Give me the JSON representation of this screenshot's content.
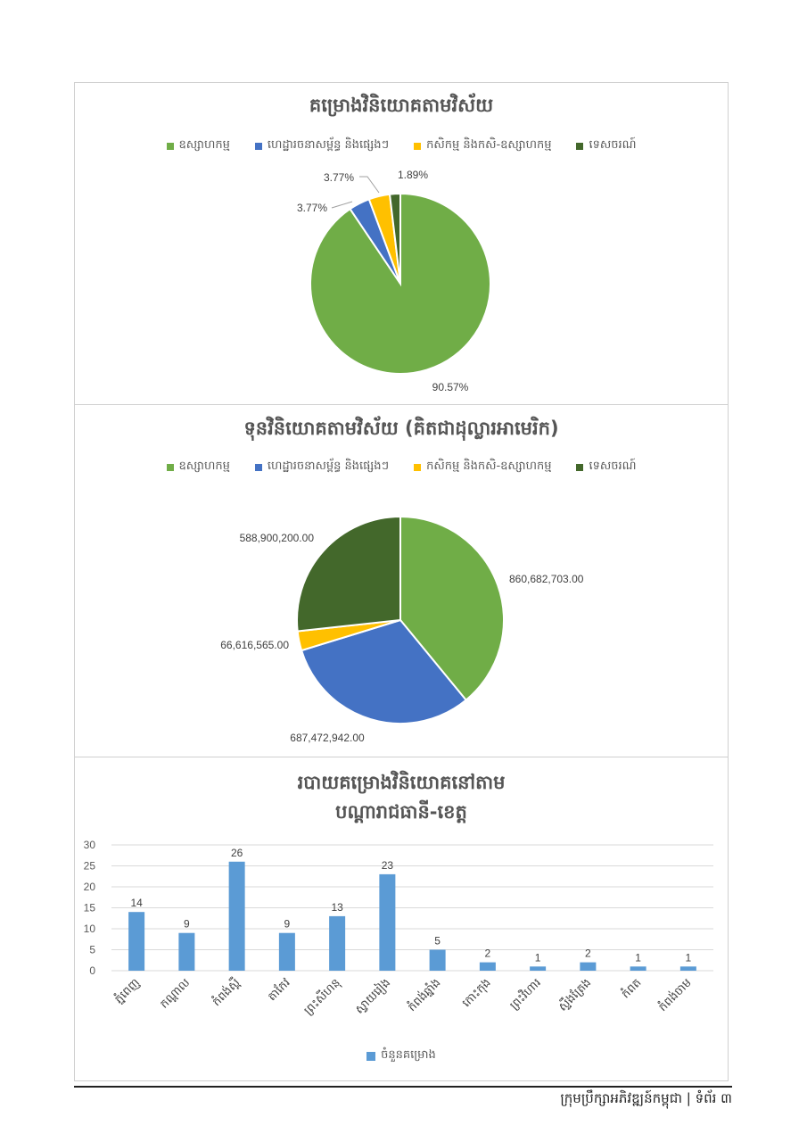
{
  "colors": {
    "industry": "#70ad47",
    "infrastructure": "#4472c4",
    "agriculture": "#ffc000",
    "tourism": "#43682b",
    "bar": "#5b9bd5"
  },
  "legend_sectors": [
    "ឧស្សាហកម្ម",
    "ហេដ្ឋារចនាសម្ព័ន្ធ និងផ្សេងៗ",
    "កសិកម្ម និងកសិ-ឧស្សាហកម្ម",
    "ទេសចរណ៍"
  ],
  "chart_data": [
    {
      "type": "pie",
      "title": "គម្រោងវិនិយោគតាមវិស័យ",
      "legend_placement": "top",
      "categories": [
        "ឧស្សាហកម្ម",
        "ហេដ្ឋារចនាសម្ព័ន្ធ និងផ្សេងៗ",
        "កសិកម្ម និងកសិ-ឧស្សាហកម្ម",
        "ទេសចរណ៍"
      ],
      "values": [
        90.57,
        3.77,
        3.77,
        1.89
      ],
      "labels": [
        "90.57%",
        "3.77%",
        "3.77%",
        "1.89%"
      ]
    },
    {
      "type": "pie",
      "title": "ទុនវិនិយោគតាមវិស័យ (គិតជាដុល្លារអាមេរិក)",
      "legend_placement": "top",
      "categories": [
        "ឧស្សាហកម្ម",
        "ហេដ្ឋារចនាសម្ព័ន្ធ និងផ្សេងៗ",
        "កសិកម្ម និងកសិ-ឧស្សាហកម្ម",
        "ទេសចរណ៍"
      ],
      "values": [
        860682703.0,
        687472942.0,
        66616565.0,
        588900200.0
      ],
      "labels": [
        "860,682,703.00",
        "687,472,942.00",
        "66,616,565.00",
        "588,900,200.00"
      ]
    },
    {
      "type": "bar",
      "title": [
        "របាយគម្រោងវិនិយោគនៅតាម",
        "បណ្តារាជធានី-ខេត្ត"
      ],
      "categories": [
        "ភ្នំពេញ",
        "កណ្តាល",
        "កំពង់ស្ពឺ",
        "តាកែវ",
        "ព្រះសីហនុ",
        "ស្វាយរៀង",
        "កំពង់ឆ្នាំង",
        "កោះកុង",
        "ព្រះវិហារ",
        "ស្ទឹងត្រែង",
        "កំពត",
        "កំពង់ចាម"
      ],
      "series": [
        {
          "name": "ចំនួនគម្រោង",
          "values": [
            14,
            9,
            26,
            9,
            13,
            23,
            5,
            2,
            1,
            2,
            1,
            1
          ]
        }
      ],
      "ylim": [
        0,
        30
      ],
      "yticks": [
        "0",
        "5",
        "10",
        "15",
        "20",
        "25",
        "30"
      ],
      "grid": true,
      "legend_placement": "bottom"
    }
  ],
  "footer": {
    "org": "ក្រុមប្រឹក្សាអភិវឌ្ឍន៍កម្ពុជា",
    "sep": "|",
    "page": "ទំព័រ ៣"
  }
}
